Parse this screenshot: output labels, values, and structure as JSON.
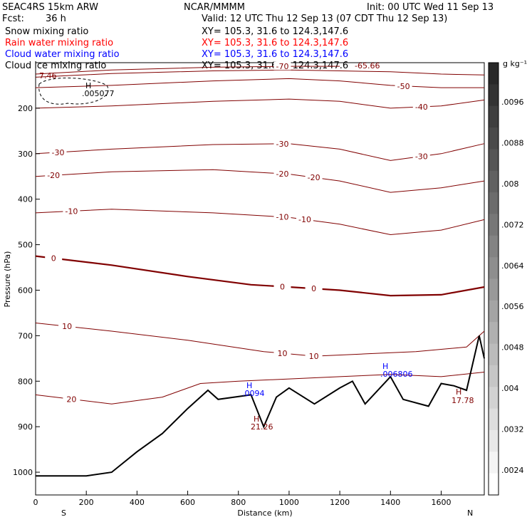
{
  "header": {
    "model": "SEAC4RS 15km ARW",
    "center": "NCAR/MMMM",
    "init": "Init: 00 UTC Wed 11 Sep 13",
    "fcst_label": "Fcst:",
    "fcst_value": "36 h",
    "valid": "Valid: 12 UTC Thu 12 Sep 13 (07 CDT Thu 12 Sep 13)",
    "fields": [
      {
        "name": "Snow mixing ratio",
        "xy": "XY= 105.3, 31.6 to 124.3,147.6",
        "color": "#000000"
      },
      {
        "name": "Rain water mixing ratio",
        "xy": "XY= 105.3, 31.6 to 124.3,147.6",
        "color": "#ff0000"
      },
      {
        "name": "Cloud water mixing ratio",
        "xy": "XY= 105.3, 31.6 to 124.3,147.6",
        "color": "#0000ff"
      },
      {
        "name": "Cloud ice mixing ratio",
        "xy": "XY= 105.3, 31.6 to 124.3,147.6",
        "color": "#000000"
      }
    ]
  },
  "colorbar": {
    "unit": "g kg⁻¹",
    "labels": [
      ".0096",
      ".0088",
      ".008",
      ".0072",
      ".0064",
      ".0056",
      ".0048",
      ".004",
      ".0032",
      ".0024"
    ]
  },
  "chart_data": {
    "type": "line",
    "title": "",
    "xlabel": "Distance (km)",
    "ylabel": "Pressure (hPa)",
    "xlim": [
      0,
      1770
    ],
    "ylim": [
      1050,
      100
    ],
    "x_ticks": [
      0,
      200,
      400,
      600,
      800,
      1000,
      1200,
      1400,
      1600
    ],
    "y_ticks": [
      200,
      300,
      400,
      500,
      600,
      700,
      800,
      900,
      1000
    ],
    "x_end_labels": {
      "left": "S",
      "right": "N"
    },
    "grid": false,
    "temperature_contours_degC": [
      {
        "level": -70,
        "points": [
          [
            0,
            125
          ],
          [
            300,
            116
          ],
          [
            700,
            110
          ],
          [
            1000,
            108
          ],
          [
            1200,
            108
          ]
        ]
      },
      {
        "level": -60,
        "points": [
          [
            0,
            132
          ],
          [
            300,
            124
          ],
          [
            700,
            118
          ],
          [
            1000,
            116
          ],
          [
            1200,
            118
          ],
          [
            1400,
            120
          ],
          [
            1600,
            125
          ],
          [
            1770,
            127
          ]
        ]
      },
      {
        "level": -50,
        "points": [
          [
            0,
            155
          ],
          [
            300,
            150
          ],
          [
            700,
            140
          ],
          [
            1000,
            135
          ],
          [
            1200,
            140
          ],
          [
            1400,
            150
          ],
          [
            1600,
            155
          ],
          [
            1770,
            155
          ]
        ]
      },
      {
        "level": -40,
        "points": [
          [
            0,
            200
          ],
          [
            300,
            195
          ],
          [
            700,
            185
          ],
          [
            1000,
            180
          ],
          [
            1200,
            185
          ],
          [
            1400,
            200
          ],
          [
            1600,
            195
          ],
          [
            1770,
            182
          ]
        ]
      },
      {
        "level": -30,
        "points": [
          [
            0,
            300
          ],
          [
            300,
            290
          ],
          [
            700,
            280
          ],
          [
            1000,
            278
          ],
          [
            1200,
            290
          ],
          [
            1400,
            315
          ],
          [
            1600,
            300
          ],
          [
            1770,
            278
          ]
        ]
      },
      {
        "level": -20,
        "points": [
          [
            0,
            350
          ],
          [
            300,
            340
          ],
          [
            700,
            335
          ],
          [
            1000,
            345
          ],
          [
            1200,
            360
          ],
          [
            1400,
            385
          ],
          [
            1600,
            375
          ],
          [
            1770,
            360
          ]
        ]
      },
      {
        "level": -10,
        "points": [
          [
            0,
            430
          ],
          [
            300,
            422
          ],
          [
            700,
            430
          ],
          [
            1000,
            440
          ],
          [
            1200,
            455
          ],
          [
            1400,
            478
          ],
          [
            1600,
            468
          ],
          [
            1770,
            445
          ]
        ]
      },
      {
        "level": 0,
        "points": [
          [
            0,
            525
          ],
          [
            300,
            545
          ],
          [
            600,
            570
          ],
          [
            850,
            588
          ],
          [
            1000,
            593
          ],
          [
            1200,
            600
          ],
          [
            1400,
            612
          ],
          [
            1600,
            610
          ],
          [
            1770,
            593
          ]
        ]
      },
      {
        "level": 10,
        "points": [
          [
            0,
            672
          ],
          [
            300,
            690
          ],
          [
            600,
            710
          ],
          [
            900,
            735
          ],
          [
            1100,
            745
          ],
          [
            1300,
            740
          ],
          [
            1500,
            735
          ],
          [
            1700,
            725
          ],
          [
            1770,
            690
          ]
        ]
      },
      {
        "level": 20,
        "points": [
          [
            0,
            830
          ],
          [
            300,
            850
          ],
          [
            500,
            835
          ],
          [
            650,
            805
          ],
          [
            800,
            800
          ],
          [
            1000,
            795
          ],
          [
            1200,
            790
          ],
          [
            1400,
            785
          ],
          [
            1600,
            790
          ],
          [
            1770,
            780
          ]
        ]
      }
    ],
    "contour_labels": [
      "-70",
      "-50",
      "-40",
      "-30",
      "-20",
      "-10",
      "0",
      "10",
      "20"
    ],
    "annotations": [
      {
        "text": "H",
        "color": "#000000"
      },
      {
        "text": ".005077",
        "color": "#000000"
      },
      {
        "text": "7.46",
        "color": "#800000"
      },
      {
        "text": "-65.66",
        "color": "#800000"
      },
      {
        "text": "H",
        "color": "#0000ff"
      },
      {
        "text": ".0094",
        "color": "#0000ff"
      },
      {
        "text": "H",
        "color": "#800000"
      },
      {
        "text": "21.26",
        "color": "#800000"
      },
      {
        "text": "H",
        "color": "#0000ff"
      },
      {
        "text": ".006806",
        "color": "#0000ff"
      },
      {
        "text": "H",
        "color": "#800000"
      },
      {
        "text": "17.78",
        "color": "#800000"
      }
    ],
    "terrain_surface_hPa": [
      [
        0,
        1008
      ],
      [
        200,
        1008
      ],
      [
        300,
        1000
      ],
      [
        400,
        955
      ],
      [
        500,
        915
      ],
      [
        600,
        860
      ],
      [
        680,
        820
      ],
      [
        720,
        840
      ],
      [
        850,
        830
      ],
      [
        900,
        900
      ],
      [
        950,
        835
      ],
      [
        1000,
        815
      ],
      [
        1100,
        850
      ],
      [
        1200,
        815
      ],
      [
        1250,
        800
      ],
      [
        1300,
        850
      ],
      [
        1400,
        790
      ],
      [
        1450,
        840
      ],
      [
        1550,
        855
      ],
      [
        1600,
        805
      ],
      [
        1650,
        810
      ],
      [
        1700,
        820
      ],
      [
        1750,
        700
      ],
      [
        1770,
        750
      ]
    ]
  }
}
